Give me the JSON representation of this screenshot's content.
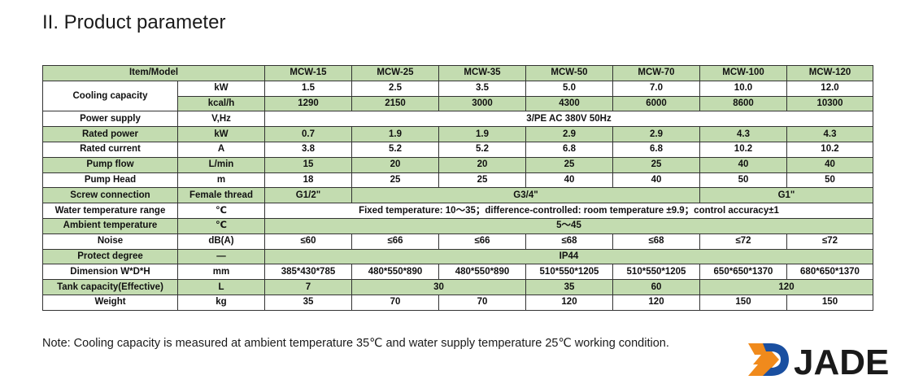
{
  "heading": "II. Product parameter",
  "header": {
    "item_model": "Item/Model",
    "models": [
      "MCW-15",
      "MCW-25",
      "MCW-35",
      "MCW-50",
      "MCW-70",
      "MCW-100",
      "MCW-120"
    ]
  },
  "rows": {
    "cooling_capacity": {
      "label": "Cooling capacity",
      "kw_unit": "kW",
      "kw_values": [
        "1.5",
        "2.5",
        "3.5",
        "5.0",
        "7.0",
        "10.0",
        "12.0"
      ],
      "kcal_unit": "kcal/h",
      "kcal_values": [
        "1290",
        "2150",
        "3000",
        "4300",
        "6000",
        "8600",
        "10300"
      ]
    },
    "power_supply": {
      "label": "Power supply",
      "unit": "V,Hz",
      "value": "3/PE AC 380V 50Hz"
    },
    "rated_power": {
      "label": "Rated power",
      "unit": "kW",
      "values": [
        "0.7",
        "1.9",
        "1.9",
        "2.9",
        "2.9",
        "4.3",
        "4.3"
      ]
    },
    "rated_current": {
      "label": "Rated current",
      "unit": "A",
      "values": [
        "3.8",
        "5.2",
        "5.2",
        "6.8",
        "6.8",
        "10.2",
        "10.2"
      ]
    },
    "pump_flow": {
      "label": "Pump flow",
      "unit": "L/min",
      "values": [
        "15",
        "20",
        "20",
        "25",
        "25",
        "40",
        "40"
      ]
    },
    "pump_head": {
      "label": "Pump Head",
      "unit": "m",
      "values": [
        "18",
        "25",
        "25",
        "40",
        "40",
        "50",
        "50"
      ]
    },
    "screw_connection": {
      "label": "Screw connection",
      "unit": "Female thread",
      "v1": "G1/2\"",
      "v2": "G3/4\"",
      "v3": "G1\""
    },
    "water_temp": {
      "label": "Water temperature range",
      "unit": "℃",
      "value": "Fixed temperature: 10～35；difference-controlled: room temperature ±9.9；control accuracy±1"
    },
    "ambient_temp": {
      "label": "Ambient temperature",
      "unit": "℃",
      "value": "5～45"
    },
    "noise": {
      "label": "Noise",
      "unit": "dB(A)",
      "values": [
        "≤60",
        "≤66",
        "≤66",
        "≤68",
        "≤68",
        "≤72",
        "≤72"
      ]
    },
    "protect_degree": {
      "label": "Protect degree",
      "unit": "—",
      "value": "IP44"
    },
    "dimension": {
      "label": "Dimension W*D*H",
      "unit": "mm",
      "values": [
        "385*430*785",
        "480*550*890",
        "480*550*890",
        "510*550*1205",
        "510*550*1205",
        "650*650*1370",
        "680*650*1370"
      ]
    },
    "tank_capacity": {
      "label": "Tank capacity(Effective)",
      "unit": "L",
      "v1": "7",
      "v2": "30",
      "v3": "35",
      "v4": "60",
      "v5": "120"
    },
    "weight": {
      "label": "Weight",
      "unit": "kg",
      "values": [
        "35",
        "70",
        "70",
        "120",
        "120",
        "150",
        "150"
      ]
    }
  },
  "note": "Note:  Cooling capacity is measured at ambient temperature 35℃ and water supply temperature 25℃ working condition.",
  "logo": {
    "text": "JADE",
    "colors": {
      "orange": "#f08a1c",
      "blue": "#1a4fa0",
      "text": "#1a1a1a"
    }
  },
  "colors": {
    "green_row": "#c3dcb0",
    "border": "#333333"
  }
}
